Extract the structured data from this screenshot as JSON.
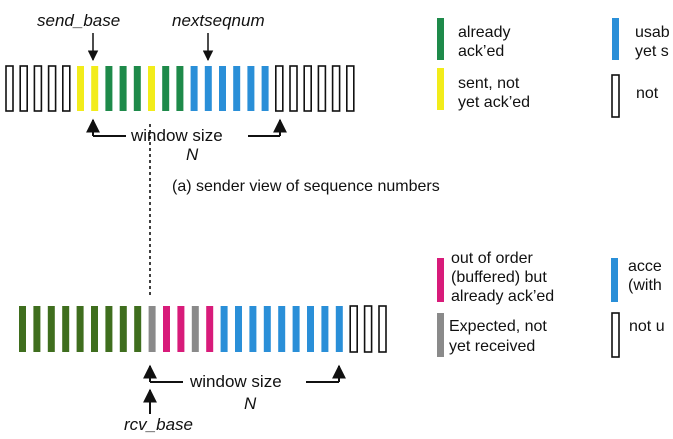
{
  "colors": {
    "acked": "#1e8a4a",
    "sent": "#f2ec1a",
    "usable": "#2a8fd8",
    "notusable": "#ffffff",
    "outoforder": "#d81b7a",
    "expected": "#8a8a8a",
    "acceptable": "#2a8fd8",
    "rcvprior": "#3f6e1e"
  },
  "sender": {
    "send_base_label": "send_base",
    "nextseqnum_label": "nextseqnum",
    "window_label": "window size",
    "n_label": "N",
    "caption": "(a) sender view of sequence numbers",
    "slots": [
      "notusable",
      "notusable",
      "notusable",
      "notusable",
      "notusable",
      "sent",
      "sent",
      "acked",
      "acked",
      "acked",
      "sent",
      "acked",
      "acked",
      "usable",
      "usable",
      "usable",
      "usable",
      "usable",
      "usable",
      "notusable",
      "notusable",
      "notusable",
      "notusable",
      "notusable",
      "notusable"
    ]
  },
  "receiver": {
    "rcv_base_label": "rcv_base",
    "window_label": "window size",
    "n_label": "N",
    "slots": [
      "rcvprior",
      "rcvprior",
      "rcvprior",
      "rcvprior",
      "rcvprior",
      "rcvprior",
      "rcvprior",
      "rcvprior",
      "rcvprior",
      "expected",
      "outoforder",
      "outoforder",
      "expected",
      "outoforder",
      "acceptable",
      "acceptable",
      "acceptable",
      "acceptable",
      "acceptable",
      "acceptable",
      "acceptable",
      "acceptable",
      "acceptable",
      "notusable",
      "notusable",
      "notusable"
    ]
  },
  "legend_sender": {
    "acked_l1": "already",
    "acked_l2": "ack’ed",
    "sent_l1": "sent, not",
    "sent_l2": "yet ack’ed",
    "usable_l1": "usab",
    "usable_l2": "yet s",
    "notusable_l1": "not"
  },
  "legend_receiver": {
    "ooo_l1": "out of order",
    "ooo_l2": "(buffered) but",
    "ooo_l3": "already ack’ed",
    "exp_l1": "Expected,  not",
    "exp_l2": "yet received",
    "acc_l1": "acce",
    "acc_l2": "(with",
    "notus_l1": "not u"
  }
}
